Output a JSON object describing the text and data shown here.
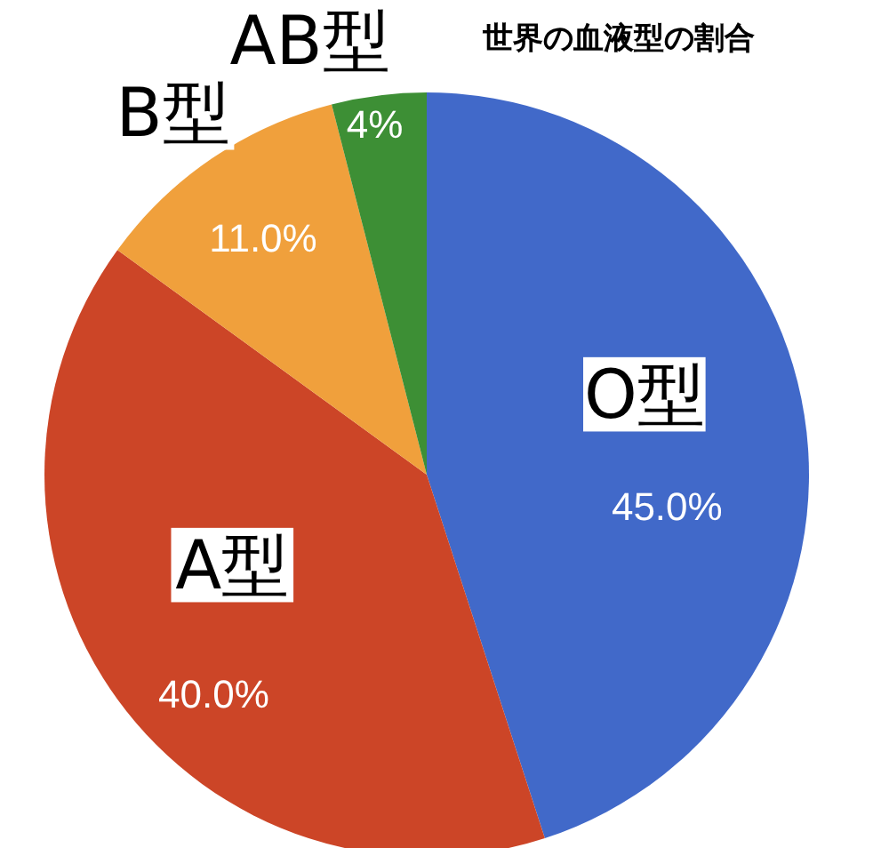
{
  "chart_data": {
    "type": "pie",
    "title": "世界の血液型の割合",
    "categories": [
      "O型",
      "A型",
      "B型",
      "AB型"
    ],
    "values": [
      45,
      40,
      11,
      4
    ],
    "value_labels": [
      "45.0%",
      "40.0%",
      "11.0%",
      "4%"
    ],
    "colors": [
      "#4169c9",
      "#cc4527",
      "#f0a03c",
      "#3d8f35"
    ]
  }
}
